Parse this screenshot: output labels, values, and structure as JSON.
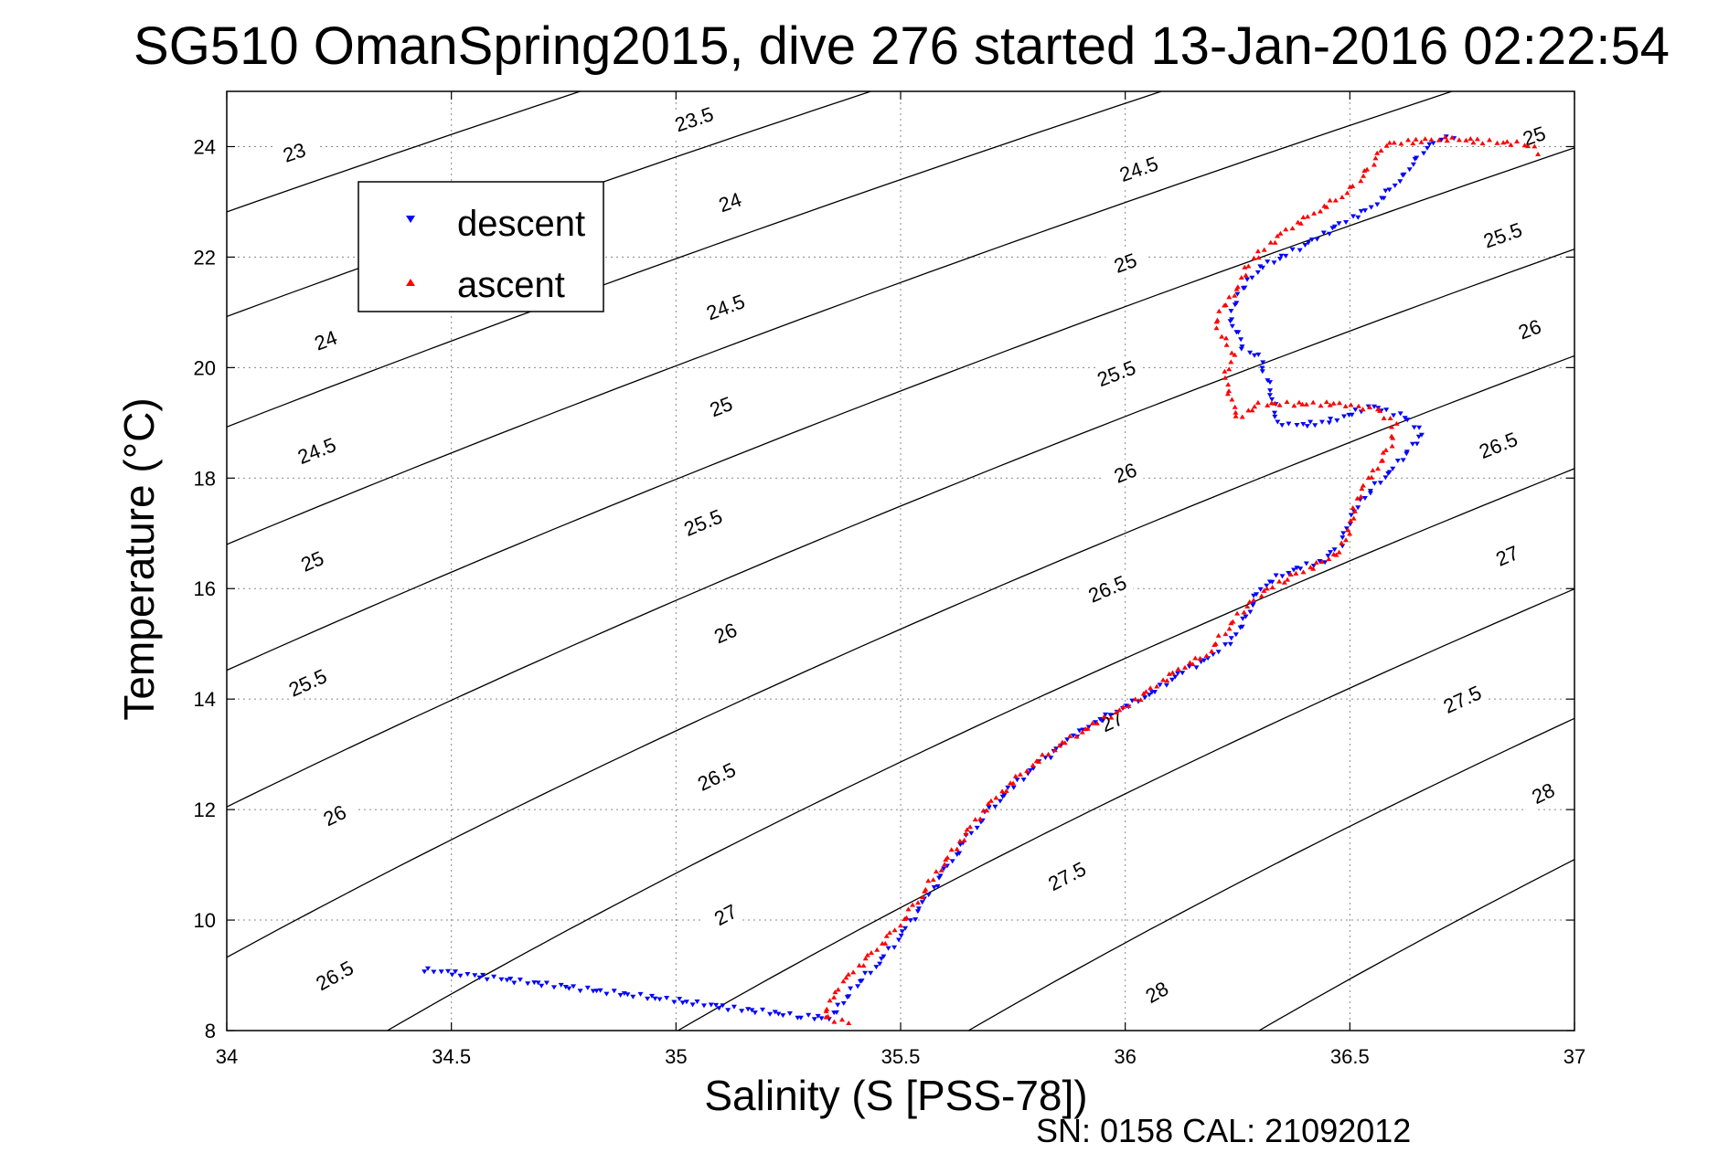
{
  "chart_data": {
    "type": "scatter",
    "title": "SG510 OmanSpring2015, dive 276 started 13-Jan-2016 02:22:54",
    "xlabel": "Salinity (S [PSS-78])",
    "ylabel": "Temperature (°C)",
    "xlim": [
      34,
      37
    ],
    "ylim": [
      8,
      25
    ],
    "xticks": [
      34,
      34.5,
      35,
      35.5,
      36,
      36.5,
      37
    ],
    "yticks": [
      8,
      10,
      12,
      14,
      16,
      18,
      20,
      22,
      24
    ],
    "xtick_labels": [
      "34",
      "34.5",
      "35",
      "35.5",
      "36",
      "36.5",
      "37"
    ],
    "ytick_labels": [
      "8",
      "10",
      "12",
      "14",
      "16",
      "18",
      "20",
      "22",
      "24"
    ],
    "grid": true,
    "legend_position": "top-left",
    "contours": {
      "levels": [
        23,
        23.5,
        24,
        24.5,
        25,
        25.5,
        26,
        26.5,
        27,
        27.5,
        28
      ],
      "labels": [
        {
          "text": "23",
          "x": 34.15,
          "y": 23.9
        },
        {
          "text": "23.5",
          "x": 35.04,
          "y": 24.5
        },
        {
          "text": "24",
          "x": 34.22,
          "y": 20.5
        },
        {
          "text": "24",
          "x": 35.12,
          "y": 23.0
        },
        {
          "text": "24.5",
          "x": 34.2,
          "y": 18.5
        },
        {
          "text": "24.5",
          "x": 35.11,
          "y": 21.1
        },
        {
          "text": "24.5",
          "x": 36.03,
          "y": 23.6
        },
        {
          "text": "25",
          "x": 34.19,
          "y": 16.5
        },
        {
          "text": "25",
          "x": 35.1,
          "y": 19.3
        },
        {
          "text": "25",
          "x": 36.0,
          "y": 21.9
        },
        {
          "text": "25",
          "x": 36.91,
          "y": 24.2
        },
        {
          "text": "25.5",
          "x": 34.18,
          "y": 14.3
        },
        {
          "text": "25.5",
          "x": 35.06,
          "y": 17.2
        },
        {
          "text": "25.5",
          "x": 35.98,
          "y": 19.9
        },
        {
          "text": "25.5",
          "x": 36.84,
          "y": 22.4
        },
        {
          "text": "26",
          "x": 34.24,
          "y": 11.9
        },
        {
          "text": "26",
          "x": 35.11,
          "y": 15.2
        },
        {
          "text": "26",
          "x": 36.0,
          "y": 18.1
        },
        {
          "text": "26",
          "x": 36.9,
          "y": 20.7
        },
        {
          "text": "26.5",
          "x": 34.24,
          "y": 9.0
        },
        {
          "text": "26.5",
          "x": 35.09,
          "y": 12.6
        },
        {
          "text": "26.5",
          "x": 35.96,
          "y": 16.0
        },
        {
          "text": "26.5",
          "x": 36.83,
          "y": 18.6
        },
        {
          "text": "27",
          "x": 35.11,
          "y": 10.1
        },
        {
          "text": "27",
          "x": 35.97,
          "y": 13.6
        },
        {
          "text": "27",
          "x": 36.85,
          "y": 16.6
        },
        {
          "text": "27.5",
          "x": 35.87,
          "y": 10.8
        },
        {
          "text": "27.5",
          "x": 36.75,
          "y": 14.0
        },
        {
          "text": "28",
          "x": 36.07,
          "y": 8.7
        },
        {
          "text": "28",
          "x": 36.93,
          "y": 12.3
        }
      ]
    },
    "series": [
      {
        "name": "descent",
        "color": "#0000ff",
        "marker": "triangle-down",
        "points": [
          [
            34.44,
            9.1
          ],
          [
            35.04,
            8.5
          ],
          [
            35.12,
            8.4
          ],
          [
            35.18,
            8.35
          ],
          [
            35.28,
            8.25
          ],
          [
            35.34,
            8.22
          ],
          [
            35.37,
            8.5
          ],
          [
            35.4,
            8.8
          ],
          [
            35.45,
            9.2
          ],
          [
            35.5,
            9.7
          ],
          [
            35.55,
            10.3
          ],
          [
            35.6,
            10.9
          ],
          [
            35.65,
            11.5
          ],
          [
            35.7,
            12.0
          ],
          [
            35.76,
            12.5
          ],
          [
            35.82,
            12.9
          ],
          [
            35.88,
            13.3
          ],
          [
            35.94,
            13.6
          ],
          [
            36.0,
            13.85
          ],
          [
            36.06,
            14.1
          ],
          [
            36.12,
            14.45
          ],
          [
            36.2,
            14.8
          ],
          [
            36.24,
            15.1
          ],
          [
            36.27,
            15.5
          ],
          [
            36.3,
            16.0
          ],
          [
            36.36,
            16.3
          ],
          [
            36.44,
            16.5
          ],
          [
            36.48,
            16.8
          ],
          [
            36.5,
            17.2
          ],
          [
            36.52,
            17.5
          ],
          [
            36.55,
            17.8
          ],
          [
            36.6,
            18.2
          ],
          [
            36.63,
            18.5
          ],
          [
            36.66,
            18.8
          ],
          [
            36.62,
            19.1
          ],
          [
            36.55,
            19.3
          ],
          [
            36.45,
            19.0
          ],
          [
            36.38,
            18.95
          ],
          [
            36.34,
            19.0
          ],
          [
            36.33,
            19.4
          ],
          [
            36.31,
            19.9
          ],
          [
            36.3,
            20.2
          ],
          [
            36.26,
            20.3
          ],
          [
            36.25,
            20.6
          ],
          [
            36.23,
            20.8
          ],
          [
            36.24,
            21.1
          ],
          [
            36.26,
            21.4
          ],
          [
            36.3,
            21.8
          ],
          [
            36.35,
            22.0
          ],
          [
            36.42,
            22.3
          ],
          [
            36.48,
            22.6
          ],
          [
            36.55,
            22.9
          ],
          [
            36.6,
            23.3
          ],
          [
            36.63,
            23.6
          ],
          [
            36.66,
            23.9
          ],
          [
            36.7,
            24.15
          ],
          [
            36.73,
            24.18
          ]
        ]
      },
      {
        "name": "ascent",
        "color": "#ff0000",
        "marker": "triangle-up",
        "points": [
          [
            35.38,
            8.15
          ],
          [
            35.33,
            8.25
          ],
          [
            35.35,
            8.6
          ],
          [
            35.38,
            8.95
          ],
          [
            35.43,
            9.35
          ],
          [
            35.48,
            9.75
          ],
          [
            35.53,
            10.25
          ],
          [
            35.58,
            10.85
          ],
          [
            35.63,
            11.4
          ],
          [
            35.68,
            11.95
          ],
          [
            35.74,
            12.45
          ],
          [
            35.8,
            12.85
          ],
          [
            35.86,
            13.2
          ],
          [
            35.93,
            13.55
          ],
          [
            36.0,
            13.85
          ],
          [
            36.06,
            14.2
          ],
          [
            36.12,
            14.55
          ],
          [
            36.18,
            14.8
          ],
          [
            36.22,
            15.2
          ],
          [
            36.26,
            15.6
          ],
          [
            36.3,
            15.9
          ],
          [
            36.36,
            16.2
          ],
          [
            36.42,
            16.4
          ],
          [
            36.48,
            16.7
          ],
          [
            36.5,
            17.1
          ],
          [
            36.51,
            17.5
          ],
          [
            36.53,
            17.9
          ],
          [
            36.56,
            18.2
          ],
          [
            36.59,
            18.6
          ],
          [
            36.6,
            19.0
          ],
          [
            36.56,
            19.25
          ],
          [
            36.52,
            19.3
          ],
          [
            36.48,
            19.35
          ],
          [
            36.3,
            19.35
          ],
          [
            36.25,
            19.1
          ],
          [
            36.23,
            19.5
          ],
          [
            36.22,
            19.9
          ],
          [
            36.24,
            20.2
          ],
          [
            36.22,
            20.5
          ],
          [
            36.2,
            20.8
          ],
          [
            36.22,
            21.1
          ],
          [
            36.25,
            21.4
          ],
          [
            36.27,
            21.8
          ],
          [
            36.3,
            22.1
          ],
          [
            36.36,
            22.5
          ],
          [
            36.42,
            22.8
          ],
          [
            36.48,
            23.1
          ],
          [
            36.52,
            23.4
          ],
          [
            36.55,
            23.7
          ],
          [
            36.58,
            24.05
          ],
          [
            36.66,
            24.12
          ],
          [
            36.72,
            24.15
          ],
          [
            36.8,
            24.1
          ],
          [
            36.9,
            24.05
          ],
          [
            36.92,
            23.9
          ]
        ]
      }
    ]
  },
  "footer": {
    "text": "SN: 0158  CAL: 21092012"
  }
}
